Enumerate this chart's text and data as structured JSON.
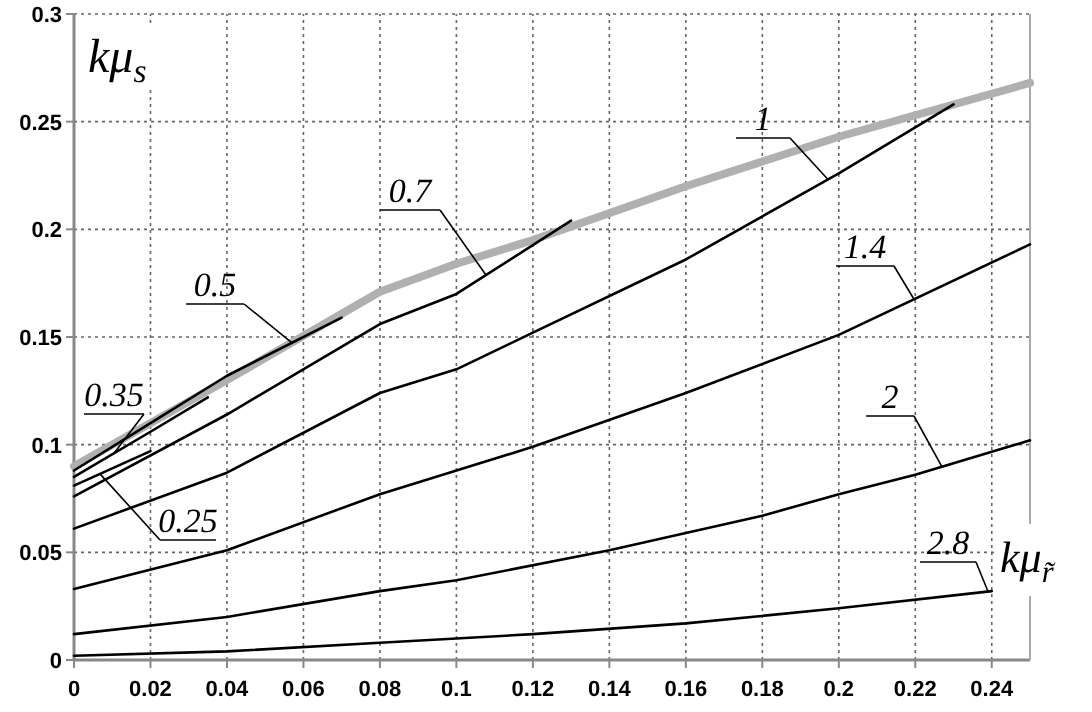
{
  "chart_data": {
    "type": "line",
    "xlabel": "kμ$_{r̃}$",
    "ylabel": "kμ$_{s}$",
    "xlim": [
      0,
      0.25
    ],
    "ylim": [
      0,
      0.3
    ],
    "xticks": [
      0,
      0.02,
      0.04,
      0.06,
      0.08,
      0.1,
      0.12,
      0.14,
      0.16,
      0.18,
      0.2,
      0.22,
      0.24
    ],
    "yticks": [
      0,
      0.05,
      0.1,
      0.15,
      0.2,
      0.25,
      0.3
    ],
    "grid": true,
    "line_style": "solid",
    "series": [
      {
        "color": "#b0b0b0",
        "x": [
          0,
          0.04,
          0.08,
          0.1,
          0.12,
          0.16,
          0.2,
          0.25
        ],
        "values": [
          0.09,
          0.13,
          0.171,
          0.184,
          0.195,
          0.22,
          0.243,
          0.268
        ]
      },
      {
        "name": "0.25",
        "color": "#000000",
        "x": [
          0,
          0.01,
          0.02
        ],
        "values": [
          0.081,
          0.089,
          0.097
        ]
      },
      {
        "name": "0.35",
        "color": "#000000",
        "x": [
          0,
          0.02,
          0.035
        ],
        "values": [
          0.085,
          0.106,
          0.122
        ]
      },
      {
        "name": "0.5",
        "color": "#000000",
        "x": [
          0,
          0.02,
          0.04,
          0.07
        ],
        "values": [
          0.088,
          0.11,
          0.132,
          0.159
        ]
      },
      {
        "name": "0.7",
        "color": "#000000",
        "x": [
          0,
          0.04,
          0.08,
          0.1,
          0.13
        ],
        "values": [
          0.076,
          0.114,
          0.156,
          0.17,
          0.204
        ]
      },
      {
        "name": "1",
        "color": "#000000",
        "x": [
          0,
          0.04,
          0.08,
          0.1,
          0.12,
          0.16,
          0.2,
          0.23
        ],
        "values": [
          0.061,
          0.087,
          0.124,
          0.135,
          0.152,
          0.186,
          0.226,
          0.258
        ]
      },
      {
        "name": "1.4",
        "color": "#000000",
        "x": [
          0,
          0.04,
          0.08,
          0.12,
          0.16,
          0.2,
          0.25
        ],
        "values": [
          0.033,
          0.051,
          0.077,
          0.099,
          0.124,
          0.151,
          0.193
        ]
      },
      {
        "name": "2",
        "color": "#000000",
        "x": [
          0,
          0.04,
          0.08,
          0.1,
          0.14,
          0.18,
          0.2,
          0.22,
          0.25
        ],
        "values": [
          0.012,
          0.02,
          0.032,
          0.037,
          0.051,
          0.067,
          0.077,
          0.086,
          0.102
        ]
      },
      {
        "name": "2.8",
        "color": "#000000",
        "x": [
          0,
          0.04,
          0.08,
          0.12,
          0.16,
          0.2,
          0.24
        ],
        "values": [
          0.002,
          0.004,
          0.008,
          0.012,
          0.017,
          0.024,
          0.032
        ]
      }
    ]
  }
}
